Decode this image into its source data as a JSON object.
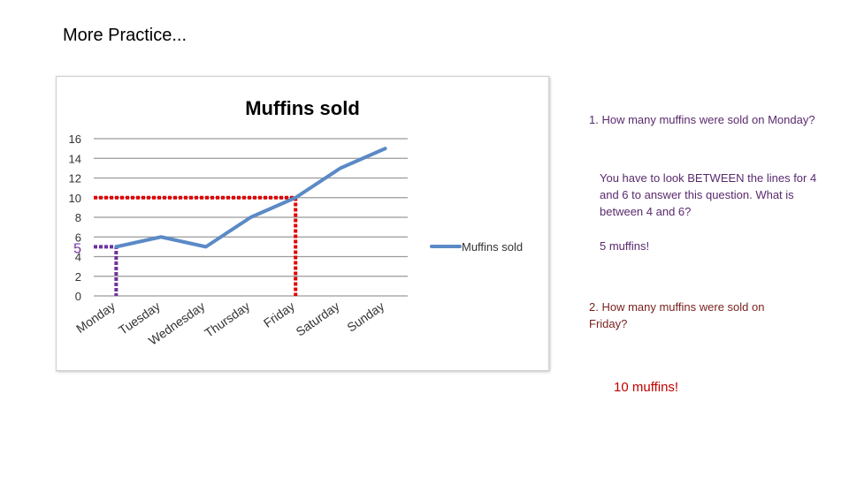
{
  "slide": {
    "title": "More Practice..."
  },
  "chart_data": {
    "type": "line",
    "title": "Muffins sold",
    "categories": [
      "Monday",
      "Tuesday",
      "Wednesday",
      "Thursday",
      "Friday",
      "Saturday",
      "Sunday"
    ],
    "series": [
      {
        "name": "Muffins sold",
        "values": [
          5,
          6,
          5,
          8,
          10,
          13,
          15
        ]
      }
    ],
    "yticks": [
      0,
      2,
      4,
      6,
      8,
      10,
      12,
      14,
      16
    ],
    "ylim": [
      0,
      16
    ],
    "xlabel": "",
    "ylabel": "",
    "grid": true,
    "legend_position": "right",
    "line_color": "#5b8ac6",
    "guides": [
      {
        "value": 5,
        "category_index": 0,
        "color": "#7030a0",
        "label": "5"
      },
      {
        "value": 10,
        "category_index": 4,
        "color": "#e00000"
      }
    ]
  },
  "questions": {
    "q1": "1. How many muffins were sold on Monday?",
    "explanation": "You have to look BETWEEN the lines for 4 and 6 to answer this question. What is between 4 and 6?",
    "answer1": "5 muffins!",
    "q2": "2. How many muffins were sold on Friday?",
    "answer2": "10 muffins!"
  }
}
